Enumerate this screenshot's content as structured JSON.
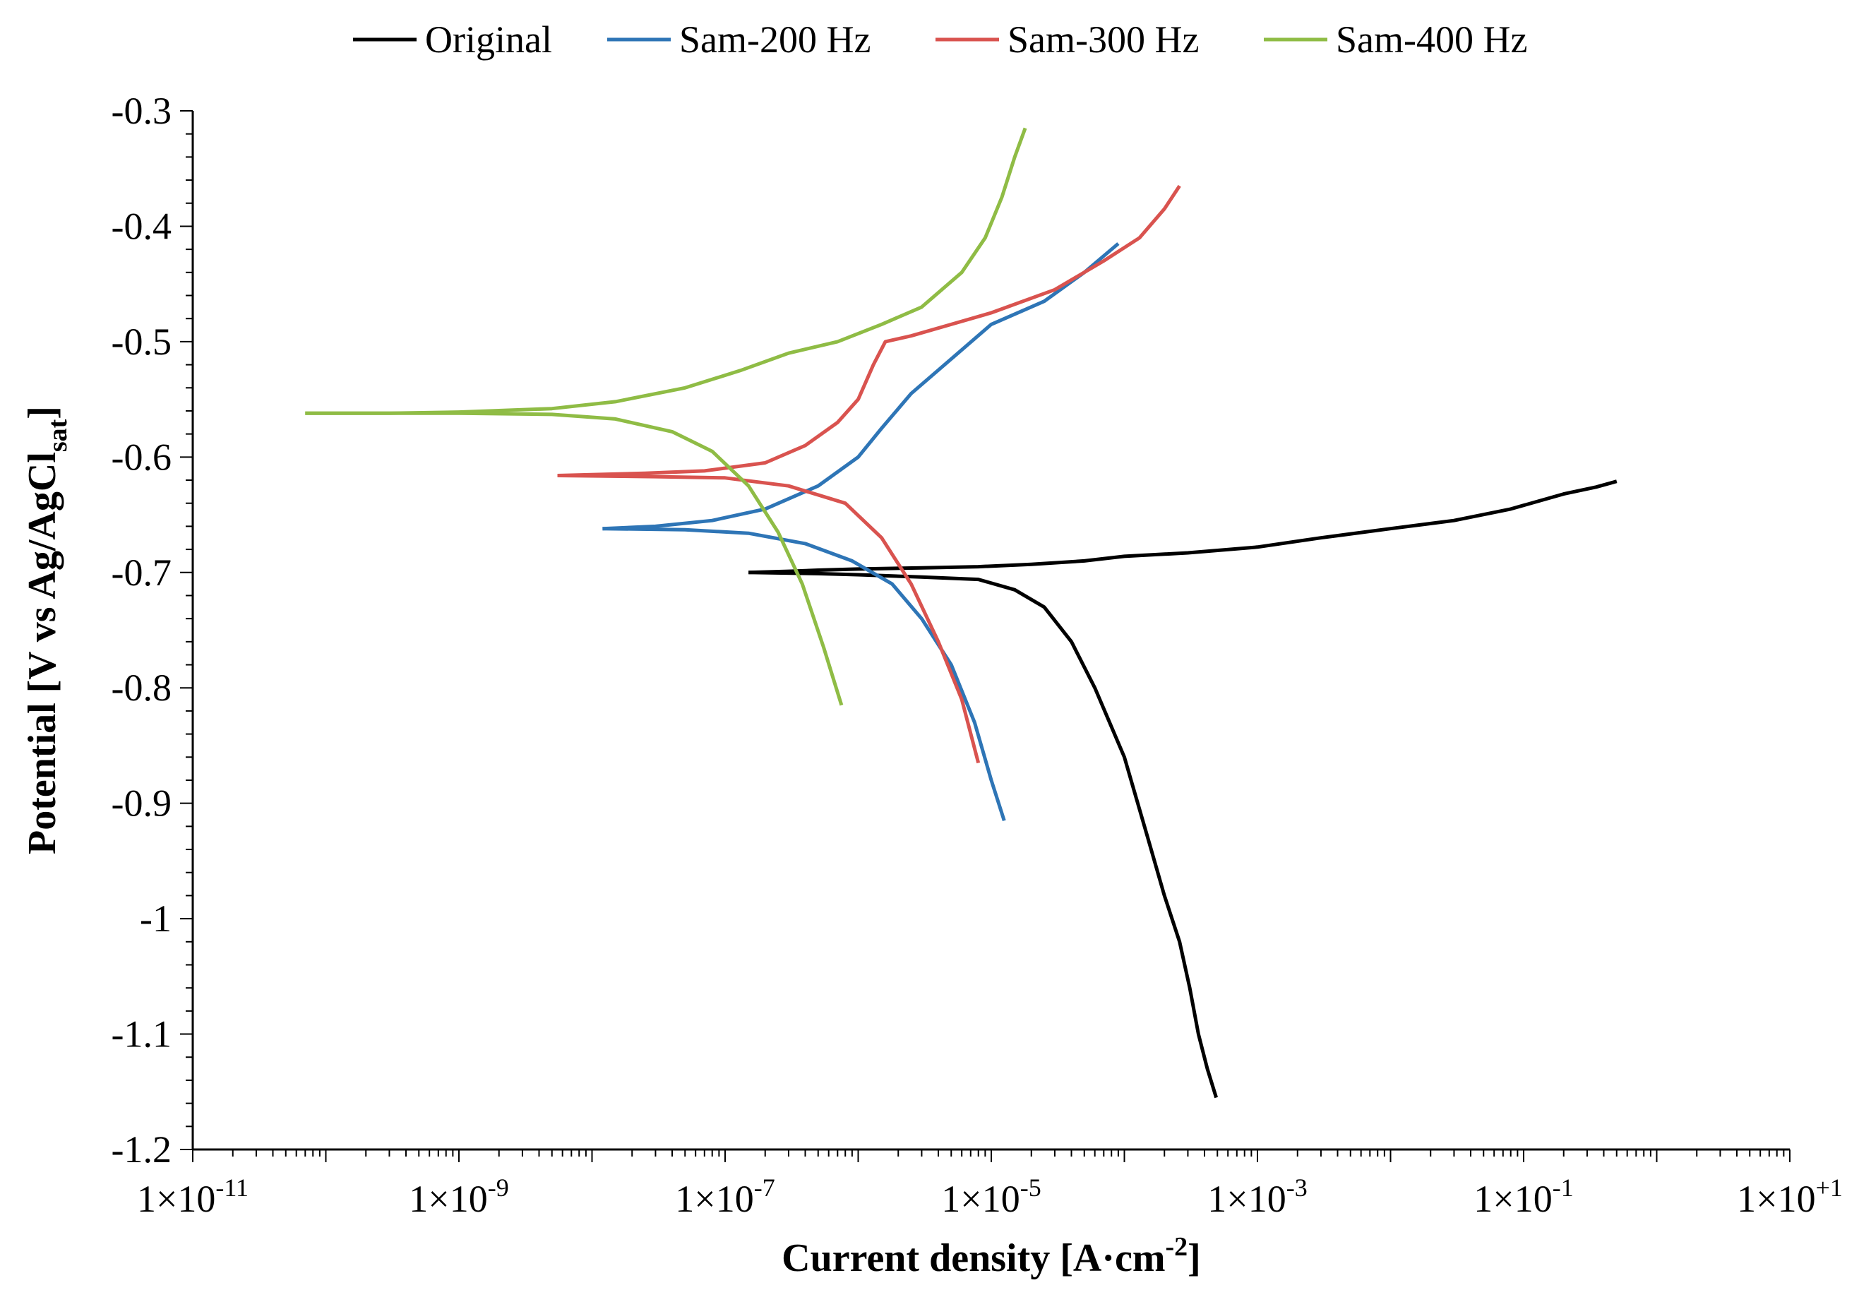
{
  "chart_data": {
    "type": "line",
    "title": "",
    "xlabel": {
      "main": "Current density [A·cm",
      "sup": "-2",
      "end": "]"
    },
    "ylabel": {
      "main": "Potential [V vs Ag/AgCl",
      "sub": "sat",
      "end": "]"
    },
    "xscale": "log",
    "xlim": [
      1e-11,
      10
    ],
    "ylim": [
      -1.2,
      -0.3
    ],
    "x_tick_labels": [
      {
        "exp": -11,
        "base": "1×10",
        "sup": "-11"
      },
      {
        "exp": -9,
        "base": "1×10",
        "sup": "-9"
      },
      {
        "exp": -7,
        "base": "1×10",
        "sup": "-7"
      },
      {
        "exp": -5,
        "base": "1×10",
        "sup": "-5"
      },
      {
        "exp": -3,
        "base": "1×10",
        "sup": "-3"
      },
      {
        "exp": -1,
        "base": "1×10",
        "sup": "-1"
      },
      {
        "exp": 1,
        "base": "1×10",
        "sup": "+1"
      }
    ],
    "y_tick_labels": [
      {
        "value": -0.3,
        "label": "-0.3"
      },
      {
        "value": -0.4,
        "label": "-0.4"
      },
      {
        "value": -0.5,
        "label": "-0.5"
      },
      {
        "value": -0.6,
        "label": "-0.6"
      },
      {
        "value": -0.7,
        "label": "-0.7"
      },
      {
        "value": -0.8,
        "label": "-0.8"
      },
      {
        "value": -0.9,
        "label": "-0.9"
      },
      {
        "value": -1.0,
        "label": "-1"
      },
      {
        "value": -1.1,
        "label": "-1.1"
      },
      {
        "value": -1.2,
        "label": "-1.2"
      }
    ],
    "legend": {
      "position": "top"
    },
    "series": [
      {
        "name": "Original",
        "color": "#000000",
        "points": [
          [
            0.5,
            -0.621
          ],
          [
            0.35,
            -0.626
          ],
          [
            0.2,
            -0.632
          ],
          [
            0.08,
            -0.645
          ],
          [
            0.03,
            -0.655
          ],
          [
            0.01,
            -0.662
          ],
          [
            0.003,
            -0.67
          ],
          [
            0.001,
            -0.678
          ],
          [
            0.0003,
            -0.683
          ],
          [
            0.0001,
            -0.686
          ],
          [
            5e-05,
            -0.69
          ],
          [
            2e-05,
            -0.693
          ],
          [
            8e-06,
            -0.695
          ],
          [
            3e-06,
            -0.696
          ],
          [
            1e-06,
            -0.697
          ],
          [
            5e-07,
            -0.698
          ],
          [
            3e-07,
            -0.699
          ],
          [
            1.5e-07,
            -0.7
          ]
        ],
        "branch2": [
          [
            1.5e-07,
            -0.7
          ],
          [
            5e-07,
            -0.701
          ],
          [
            1e-06,
            -0.702
          ],
          [
            3e-06,
            -0.704
          ],
          [
            8e-06,
            -0.706
          ],
          [
            1.5e-05,
            -0.715
          ],
          [
            2.5e-05,
            -0.73
          ],
          [
            4e-05,
            -0.76
          ],
          [
            6e-05,
            -0.8
          ],
          [
            0.0001,
            -0.86
          ],
          [
            0.00015,
            -0.93
          ],
          [
            0.0002,
            -0.98
          ],
          [
            0.00026,
            -1.02
          ],
          [
            0.00031,
            -1.06
          ],
          [
            0.00036,
            -1.1
          ],
          [
            0.00042,
            -1.13
          ],
          [
            0.00049,
            -1.155
          ]
        ]
      },
      {
        "name": "Sam-200 Hz",
        "color": "#2e75b6",
        "points": [
          [
            9e-05,
            -0.415
          ],
          [
            5e-05,
            -0.44
          ],
          [
            2.5e-05,
            -0.465
          ],
          [
            1e-05,
            -0.485
          ],
          [
            5e-06,
            -0.515
          ],
          [
            2.5e-06,
            -0.545
          ],
          [
            1.5e-06,
            -0.575
          ],
          [
            1e-06,
            -0.6
          ],
          [
            5e-07,
            -0.625
          ],
          [
            2e-07,
            -0.645
          ],
          [
            8e-08,
            -0.655
          ],
          [
            3e-08,
            -0.66
          ],
          [
            1.2e-08,
            -0.662
          ]
        ],
        "branch2": [
          [
            1.2e-08,
            -0.662
          ],
          [
            5e-08,
            -0.663
          ],
          [
            1.5e-07,
            -0.666
          ],
          [
            4e-07,
            -0.675
          ],
          [
            9e-07,
            -0.69
          ],
          [
            1.8e-06,
            -0.71
          ],
          [
            3e-06,
            -0.74
          ],
          [
            5e-06,
            -0.78
          ],
          [
            7.5e-06,
            -0.83
          ],
          [
            1e-05,
            -0.88
          ],
          [
            1.25e-05,
            -0.915
          ]
        ]
      },
      {
        "name": "Sam-300 Hz",
        "color": "#d9534f",
        "points": [
          [
            0.00026,
            -0.365
          ],
          [
            0.0002,
            -0.385
          ],
          [
            0.00013,
            -0.41
          ],
          [
            7e-05,
            -0.43
          ],
          [
            3e-05,
            -0.455
          ],
          [
            1e-05,
            -0.475
          ],
          [
            5e-06,
            -0.485
          ],
          [
            2.5e-06,
            -0.495
          ],
          [
            1.6e-06,
            -0.5
          ],
          [
            1.3e-06,
            -0.52
          ],
          [
            1e-06,
            -0.55
          ],
          [
            7e-07,
            -0.57
          ],
          [
            4e-07,
            -0.59
          ],
          [
            2e-07,
            -0.605
          ],
          [
            7e-08,
            -0.612
          ],
          [
            2.5e-08,
            -0.614
          ],
          [
            5.5e-09,
            -0.616
          ]
        ],
        "branch2": [
          [
            5.5e-09,
            -0.616
          ],
          [
            3e-08,
            -0.617
          ],
          [
            1e-07,
            -0.618
          ],
          [
            3e-07,
            -0.625
          ],
          [
            8e-07,
            -0.64
          ],
          [
            1.5e-06,
            -0.67
          ],
          [
            2.5e-06,
            -0.71
          ],
          [
            4e-06,
            -0.76
          ],
          [
            6e-06,
            -0.81
          ],
          [
            8e-06,
            -0.865
          ]
        ]
      },
      {
        "name": "Sam-400 Hz",
        "color": "#8fbc45",
        "points": [
          [
            1.8e-05,
            -0.315
          ],
          [
            1.5e-05,
            -0.34
          ],
          [
            1.2e-05,
            -0.375
          ],
          [
            9e-06,
            -0.41
          ],
          [
            6e-06,
            -0.44
          ],
          [
            3e-06,
            -0.47
          ],
          [
            1.5e-06,
            -0.485
          ],
          [
            7e-07,
            -0.5
          ],
          [
            3e-07,
            -0.51
          ],
          [
            1.3e-07,
            -0.525
          ],
          [
            5e-08,
            -0.54
          ],
          [
            1.5e-08,
            -0.552
          ],
          [
            5e-09,
            -0.558
          ],
          [
            1e-09,
            -0.561
          ],
          [
            3e-10,
            -0.562
          ],
          [
            7e-11,
            -0.562
          ]
        ],
        "branch2": [
          [
            7e-11,
            -0.562
          ],
          [
            1e-09,
            -0.562
          ],
          [
            5e-09,
            -0.563
          ],
          [
            1.5e-08,
            -0.567
          ],
          [
            4e-08,
            -0.578
          ],
          [
            8e-08,
            -0.595
          ],
          [
            1.5e-07,
            -0.625
          ],
          [
            2.5e-07,
            -0.665
          ],
          [
            3.8e-07,
            -0.71
          ],
          [
            5.5e-07,
            -0.765
          ],
          [
            7.5e-07,
            -0.815
          ]
        ]
      }
    ]
  }
}
